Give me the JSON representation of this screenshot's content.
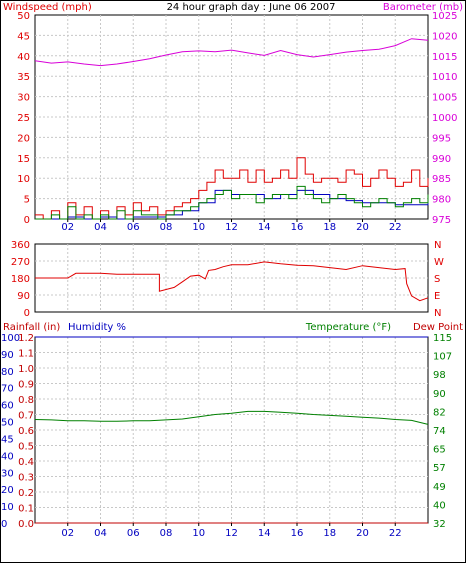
{
  "title": "24 hour graph day : June 06 2007",
  "colors": {
    "red": "#e00000",
    "magenta": "#d800d8",
    "blue": "#0000c0",
    "green": "#008000",
    "darkred": "#c00000",
    "grid": "#c8c8c8",
    "axis": "#000000"
  },
  "chart_data": [
    {
      "type": "line",
      "left_label": "Windspeed (mph)",
      "right_label": "Barometer (mb)",
      "x_ticks": [
        "02",
        "04",
        "06",
        "08",
        "10",
        "12",
        "14",
        "16",
        "18",
        "20",
        "22"
      ],
      "xlim": [
        0,
        24
      ],
      "left_ticks": [
        "0",
        "5",
        "10",
        "15",
        "20",
        "25",
        "30",
        "35",
        "40",
        "45",
        "50"
      ],
      "ylim": [
        0,
        50
      ],
      "right_ticks": [
        "975",
        "980",
        "985",
        "990",
        "995",
        "1000",
        "1005",
        "1010",
        "1015",
        "1020",
        "1025"
      ],
      "y2lim": [
        975,
        1025
      ],
      "grid": true,
      "series": [
        {
          "axis": "right",
          "color": "magenta",
          "x": [
            0,
            1,
            2,
            3,
            4,
            5,
            6,
            7,
            8,
            9,
            10,
            11,
            12,
            13,
            14,
            15,
            16,
            17,
            18,
            19,
            20,
            21,
            22,
            23,
            24
          ],
          "values": [
            1013.8,
            1013.2,
            1013.5,
            1013.0,
            1012.6,
            1013.0,
            1013.6,
            1014.3,
            1015.2,
            1016.0,
            1016.2,
            1016.0,
            1016.4,
            1015.7,
            1015.1,
            1016.3,
            1015.3,
            1014.7,
            1015.3,
            1015.9,
            1016.3,
            1016.6,
            1017.5,
            1019.2,
            1018.8
          ]
        },
        {
          "axis": "left",
          "color": "red",
          "x": [
            0,
            0.5,
            1,
            1.5,
            2,
            2.5,
            3,
            3.5,
            4,
            4.5,
            5,
            5.5,
            6,
            6.5,
            7,
            7.5,
            8,
            8.5,
            9,
            9.5,
            10,
            10.5,
            11,
            11.5,
            12,
            12.5,
            13,
            13.5,
            14,
            14.5,
            15,
            15.5,
            16,
            16.5,
            17,
            17.5,
            18,
            18.5,
            19,
            19.5,
            20,
            20.5,
            21,
            21.5,
            22,
            22.5,
            23,
            23.5,
            24
          ],
          "values": [
            1,
            0,
            2,
            0,
            4,
            1,
            3,
            0,
            2,
            0,
            3,
            1,
            4,
            2,
            3,
            1,
            2,
            3,
            4,
            5,
            7,
            9,
            12,
            10,
            10,
            12,
            9,
            12,
            9,
            10,
            12,
            10,
            15,
            11,
            9,
            10,
            10,
            9,
            12,
            11,
            8,
            10,
            12,
            10,
            8,
            9,
            12,
            8,
            10
          ]
        },
        {
          "axis": "left",
          "color": "blue",
          "x": [
            0,
            1,
            2,
            3,
            4,
            5,
            6,
            7,
            8,
            9,
            10,
            11,
            12,
            13,
            14,
            15,
            16,
            17,
            18,
            19,
            20,
            21,
            22,
            23,
            24
          ],
          "values": [
            0,
            0,
            0.5,
            0,
            0.5,
            0,
            0.5,
            0.5,
            1,
            2,
            4,
            7,
            6,
            6,
            5,
            6,
            7,
            6,
            5,
            4.5,
            4,
            4,
            3.5,
            3.5,
            4.5
          ]
        },
        {
          "axis": "left",
          "color": "green",
          "x": [
            0,
            0.5,
            1,
            1.5,
            2,
            2.5,
            3,
            3.5,
            4,
            4.5,
            5,
            5.5,
            6,
            6.5,
            7,
            7.5,
            8,
            8.5,
            9,
            9.5,
            10,
            10.5,
            11,
            11.5,
            12,
            12.5,
            13,
            13.5,
            14,
            14.5,
            15,
            15.5,
            16,
            16.5,
            17,
            17.5,
            18,
            18.5,
            19,
            19.5,
            20,
            20.5,
            21,
            21.5,
            22,
            22.5,
            23,
            23.5,
            24
          ],
          "values": [
            0,
            0,
            1,
            0,
            3,
            0,
            1,
            0,
            1,
            0,
            2,
            0,
            2,
            1,
            1,
            0,
            1,
            2,
            2,
            3,
            4,
            5,
            6,
            7,
            5,
            6,
            6,
            4,
            5,
            6,
            6,
            5,
            8,
            6,
            5,
            4,
            5,
            6,
            5,
            4,
            3,
            4,
            5,
            4,
            3,
            4,
            5,
            4,
            6
          ]
        }
      ]
    },
    {
      "type": "line",
      "left_ticks": [
        "0",
        "90",
        "180",
        "270",
        "360"
      ],
      "ylim": [
        0,
        360
      ],
      "right_ticks": [
        "N",
        "E",
        "S",
        "W",
        "N"
      ],
      "xlim": [
        0,
        24
      ],
      "grid": true,
      "series": [
        {
          "axis": "left",
          "color": "red",
          "x": [
            0,
            2,
            2.5,
            3,
            4,
            5,
            6,
            7,
            7.6,
            7.6,
            8.5,
            9.0,
            9.5,
            10.0,
            10.4,
            10.6,
            11,
            11.5,
            12,
            13,
            14,
            15,
            16,
            17,
            18,
            19,
            20,
            21,
            22,
            22.6,
            22.7,
            23.0,
            23.5,
            24
          ],
          "values": [
            180,
            180,
            205,
            205,
            205,
            200,
            200,
            200,
            200,
            110,
            130,
            160,
            190,
            195,
            175,
            220,
            225,
            240,
            250,
            250,
            265,
            255,
            248,
            245,
            235,
            225,
            245,
            235,
            225,
            230,
            150,
            85,
            60,
            75
          ]
        }
      ]
    },
    {
      "type": "line",
      "left_label": "Rainfall (in)",
      "middle_label": "Humidity %",
      "right_label": "Temperature (°F)",
      "right_label2": "Dew Point",
      "x_ticks": [
        "02",
        "04",
        "06",
        "08",
        "10",
        "12",
        "14",
        "16",
        "18",
        "20",
        "22"
      ],
      "xlim": [
        0,
        24
      ],
      "rain_ticks": [
        "0.0",
        "0.1",
        "0.2",
        "0.3",
        "0.4",
        "0.5",
        "0.6",
        "0.7",
        "0.8",
        "0.9",
        "1.0",
        "1.1",
        "1.2"
      ],
      "humidity_ticks": [
        "0",
        "10",
        "20",
        "30",
        "40",
        "45",
        "50",
        "60",
        "70",
        "80",
        "90",
        "100"
      ],
      "ylim": [
        0,
        1.2
      ],
      "right_ticks": [
        "32",
        "40",
        "49",
        "57",
        "65",
        "74",
        "82",
        "90",
        "98",
        "107",
        "115"
      ],
      "y2lim": [
        32,
        115
      ],
      "grid": true,
      "series": [
        {
          "axis": "rain",
          "color": "darkred",
          "x": [
            0,
            24
          ],
          "values": [
            0,
            0
          ]
        },
        {
          "axis": "humidity",
          "color": "blue",
          "x": [
            0,
            24
          ],
          "values": [
            100,
            100
          ]
        },
        {
          "axis": "right",
          "color": "green",
          "x": [
            0,
            1,
            2,
            3,
            4,
            5,
            6,
            7,
            8,
            9,
            10,
            11,
            12,
            13,
            14,
            15,
            16,
            17,
            18,
            19,
            20,
            21,
            22,
            23,
            24
          ],
          "values": [
            78.2,
            78.0,
            77.6,
            77.6,
            77.4,
            77.4,
            77.6,
            77.6,
            78.0,
            78.4,
            79.4,
            80.4,
            81.0,
            81.8,
            81.8,
            81.4,
            81.0,
            80.4,
            80.0,
            79.6,
            79.2,
            78.8,
            78.2,
            77.8,
            76.0
          ]
        }
      ]
    }
  ]
}
